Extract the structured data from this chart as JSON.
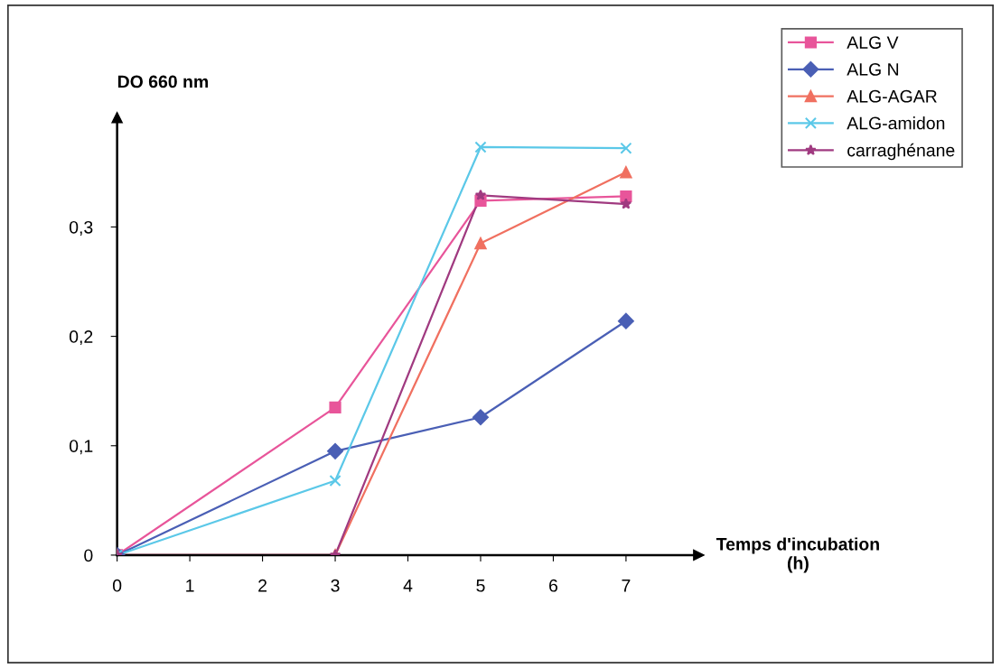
{
  "chart_data": {
    "type": "line",
    "xlabel": "Temps d'incubation\n(h)",
    "ylabel": "DO 660 nm",
    "x": [
      0,
      3,
      5,
      7
    ],
    "series": [
      {
        "name": "ALG V",
        "color": "#e8559a",
        "marker": "square",
        "values": [
          0,
          0.135,
          0.324,
          0.328
        ]
      },
      {
        "name": "ALG N",
        "color": "#4a5fb5",
        "marker": "diamond",
        "values": [
          0,
          0.095,
          0.126,
          0.214
        ]
      },
      {
        "name": "ALG-AGAR",
        "color": "#f07060",
        "marker": "triangle",
        "values": [
          0,
          0,
          0.285,
          0.35
        ]
      },
      {
        "name": "ALG-amidon",
        "color": "#5bc8e8",
        "marker": "cross",
        "values": [
          0,
          0.068,
          0.373,
          0.372
        ]
      },
      {
        "name": "carraghénane",
        "color": "#a03a80",
        "marker": "star",
        "values": [
          0,
          0,
          0.329,
          0.321
        ]
      }
    ],
    "xlim": [
      0,
      8
    ],
    "ylim": [
      0,
      0.4
    ],
    "xticks": [
      0,
      1,
      2,
      3,
      4,
      5,
      6,
      7
    ],
    "yticks": [
      {
        "value": 0,
        "label": "0"
      },
      {
        "value": 0.1,
        "label": "0,1"
      },
      {
        "value": 0.2,
        "label": "0,2"
      },
      {
        "value": 0.3,
        "label": "0,3"
      }
    ],
    "grid": false,
    "legend": "top right",
    "line_style": "solid"
  }
}
